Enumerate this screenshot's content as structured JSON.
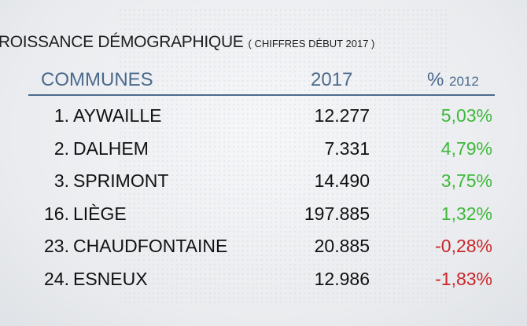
{
  "title": "CROISSANCE DÉMOGRAPHIQUE",
  "subtitle": "( CHIFFRES DÉBUT 2017 )",
  "colors": {
    "header": "#4b6a8c",
    "positive": "#3db83a",
    "negative": "#c8262a"
  },
  "chart_data": {
    "type": "table",
    "columns": [
      "COMMUNES",
      "2017",
      "% 2012"
    ],
    "header_pct": "%",
    "header_pct_year": "2012",
    "rows": [
      {
        "rank": "1.",
        "name": "AYWAILLE",
        "pop": "12.277",
        "pct": "5,03%"
      },
      {
        "rank": "2.",
        "name": "DALHEM",
        "pop": "7.331",
        "pct": "4,79%"
      },
      {
        "rank": "3.",
        "name": "SPRIMONT",
        "pop": "14.490",
        "pct": "3,75%"
      },
      {
        "rank": "16.",
        "name": "LIÈGE",
        "pop": "197.885",
        "pct": "1,32%"
      },
      {
        "rank": "23.",
        "name": "CHAUDFONTAINE",
        "pop": "20.885",
        "pct": "-0,28%"
      },
      {
        "rank": "24.",
        "name": "ESNEUX",
        "pop": "12.986",
        "pct": "-1,83%"
      }
    ]
  }
}
